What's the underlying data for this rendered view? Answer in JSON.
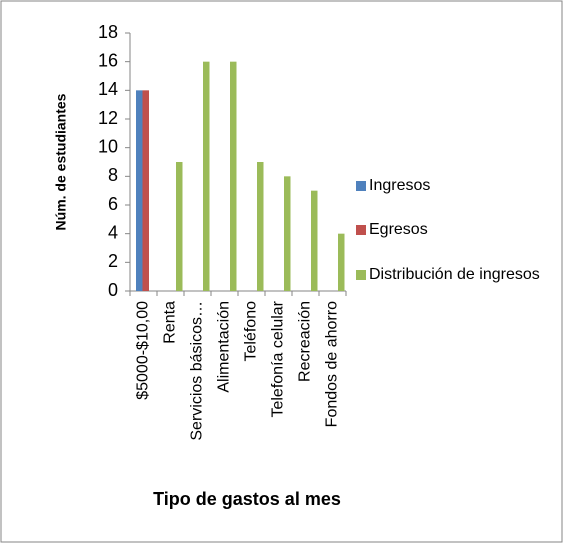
{
  "chart_data": {
    "type": "bar",
    "categories": [
      "$5000-$10,00",
      "Renta",
      "Servicios básicos…",
      "Alimentación",
      "Teléfono",
      "Telefonía celular",
      "Recreación",
      "Fondos de ahorro"
    ],
    "series": [
      {
        "name": "Ingresos",
        "color": "#4f81bd",
        "values": [
          14,
          null,
          null,
          null,
          null,
          null,
          null,
          null
        ]
      },
      {
        "name": "Egresos",
        "color": "#c0504d",
        "values": [
          14,
          null,
          null,
          null,
          null,
          null,
          null,
          null
        ]
      },
      {
        "name": "Distribución de ingresos",
        "color": "#9bbb59",
        "values": [
          null,
          9,
          16,
          16,
          9,
          8,
          7,
          4
        ]
      }
    ],
    "ylabel": "Núm. de estudiantes",
    "xlabel": "Tipo de gastos al mes",
    "ylim": [
      0,
      18
    ],
    "yticks": [
      0,
      2,
      4,
      6,
      8,
      10,
      12,
      14,
      16,
      18
    ],
    "grid": false,
    "legend": "right"
  }
}
